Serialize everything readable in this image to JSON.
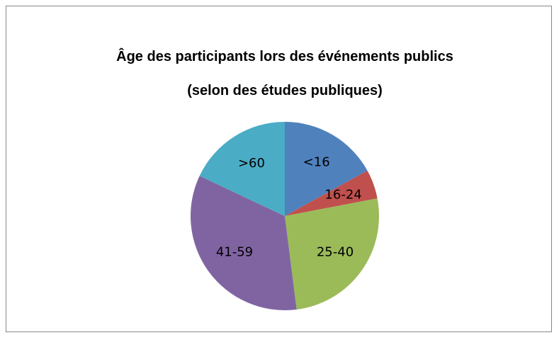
{
  "chart_data": {
    "type": "pie",
    "title": "Âge des participants lors des événements publics (selon des études publiques)",
    "categories": [
      "<16",
      "16-24",
      "25-40",
      "41-59",
      ">60"
    ],
    "values": [
      17,
      5,
      26,
      34,
      18
    ],
    "colors": [
      "#4f81bd",
      "#c0504d",
      "#9bbb59",
      "#8064a2",
      "#4bacc6"
    ]
  }
}
